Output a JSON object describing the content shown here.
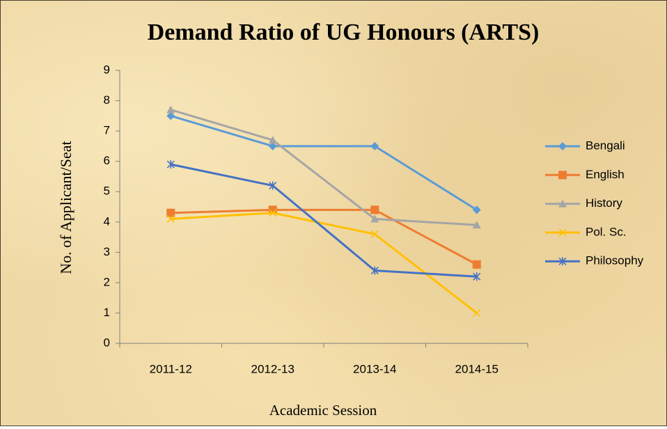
{
  "chart_data": {
    "type": "line",
    "title": "Demand Ratio of UG Honours (ARTS)",
    "x_label": "Academic Session",
    "y_label": "No. of Applicant/Seat",
    "categories": [
      "2011-12",
      "2012-13",
      "2013-14",
      "2014-15"
    ],
    "series": [
      {
        "name": "Bengali",
        "color": "#5b9bd5",
        "marker": "diamond",
        "values": [
          7.5,
          6.5,
          6.5,
          4.4
        ]
      },
      {
        "name": "English",
        "color": "#ed7d31",
        "marker": "square",
        "values": [
          4.3,
          4.4,
          4.4,
          2.6
        ]
      },
      {
        "name": "History",
        "color": "#a5a5a5",
        "marker": "triangle",
        "values": [
          7.7,
          6.7,
          4.1,
          3.9
        ]
      },
      {
        "name": "Pol. Sc.",
        "color": "#ffc000",
        "marker": "x",
        "values": [
          4.1,
          4.3,
          3.6,
          1.0
        ]
      },
      {
        "name": "Philosophy",
        "color": "#4472c4",
        "marker": "star",
        "values": [
          5.9,
          5.2,
          2.4,
          2.2
        ]
      }
    ],
    "ylim": [
      0,
      9
    ],
    "yticks": [
      0,
      1,
      2,
      3,
      4,
      5,
      6,
      7,
      8,
      9
    ],
    "grid": false,
    "legend": "right"
  }
}
